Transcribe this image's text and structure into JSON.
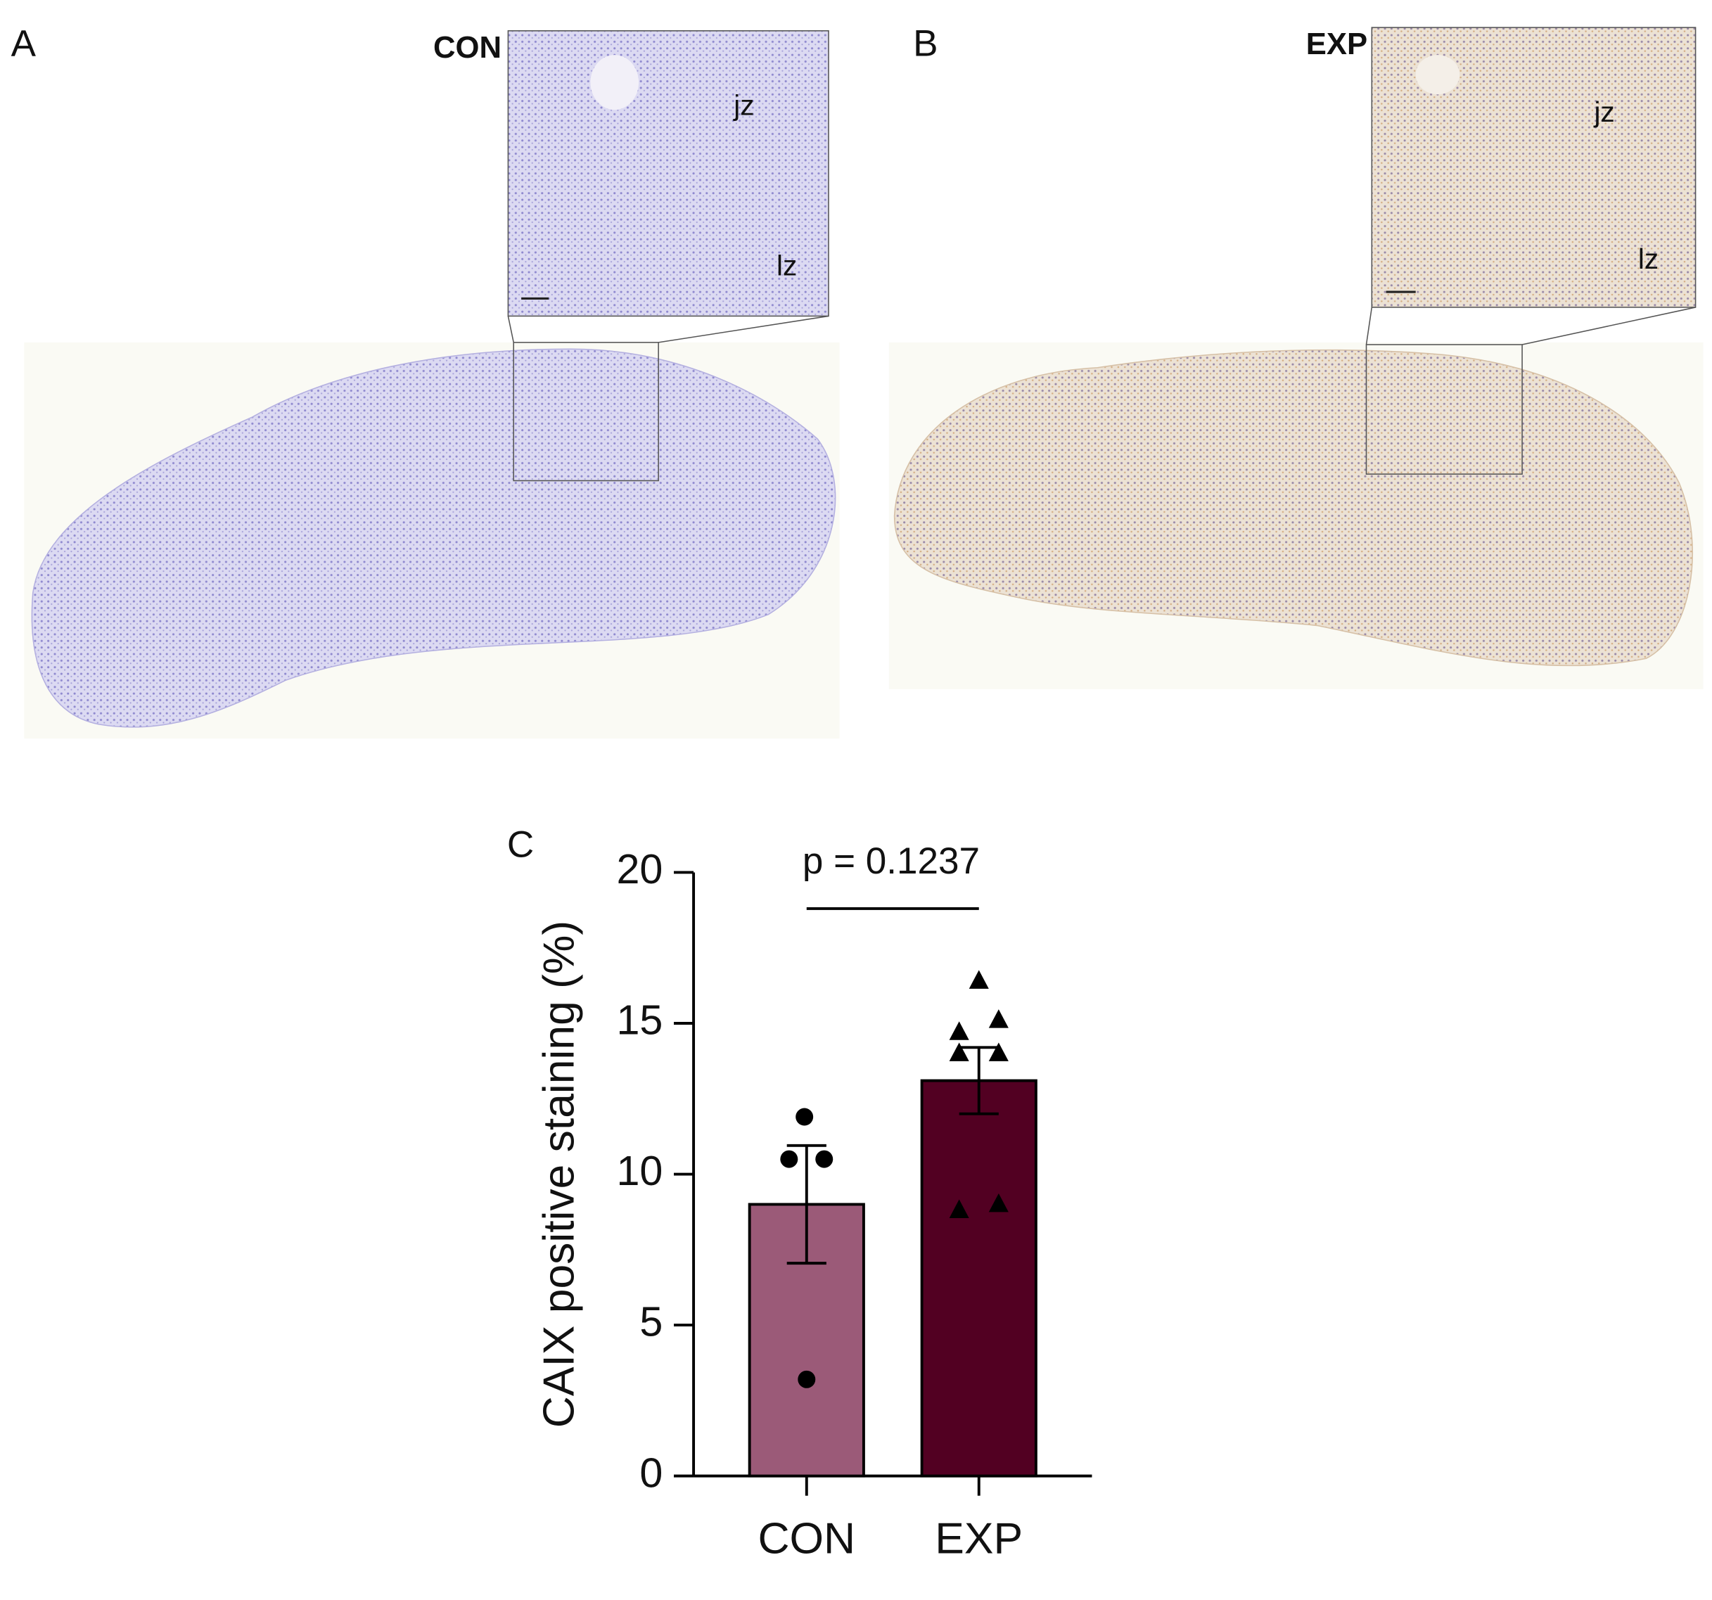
{
  "panels": [
    {
      "letter": "A",
      "label": "CON",
      "zones": [
        "jz",
        "lz"
      ]
    },
    {
      "letter": "B",
      "label": "EXP",
      "zones": [
        "jz",
        "lz"
      ]
    }
  ],
  "chart_data": {
    "type": "bar",
    "letter": "C",
    "ylabel": "CAIX positive staining (%)",
    "annotation": "p = 0.1237",
    "categories": [
      "CON",
      "EXP"
    ],
    "values": [
      9.0,
      13.1
    ],
    "errors": [
      1.95,
      1.1
    ],
    "colors": [
      "#9b5a78",
      "#520022"
    ],
    "points": [
      [
        11.9,
        10.5,
        10.5,
        3.2
      ],
      [
        16.4,
        14.7,
        15.1,
        14.0,
        14.0,
        8.8,
        9.0
      ]
    ],
    "markers": [
      "circle",
      "triangle"
    ],
    "ylim": [
      0,
      20
    ],
    "yticks": [
      0,
      5,
      10,
      15,
      20
    ]
  }
}
